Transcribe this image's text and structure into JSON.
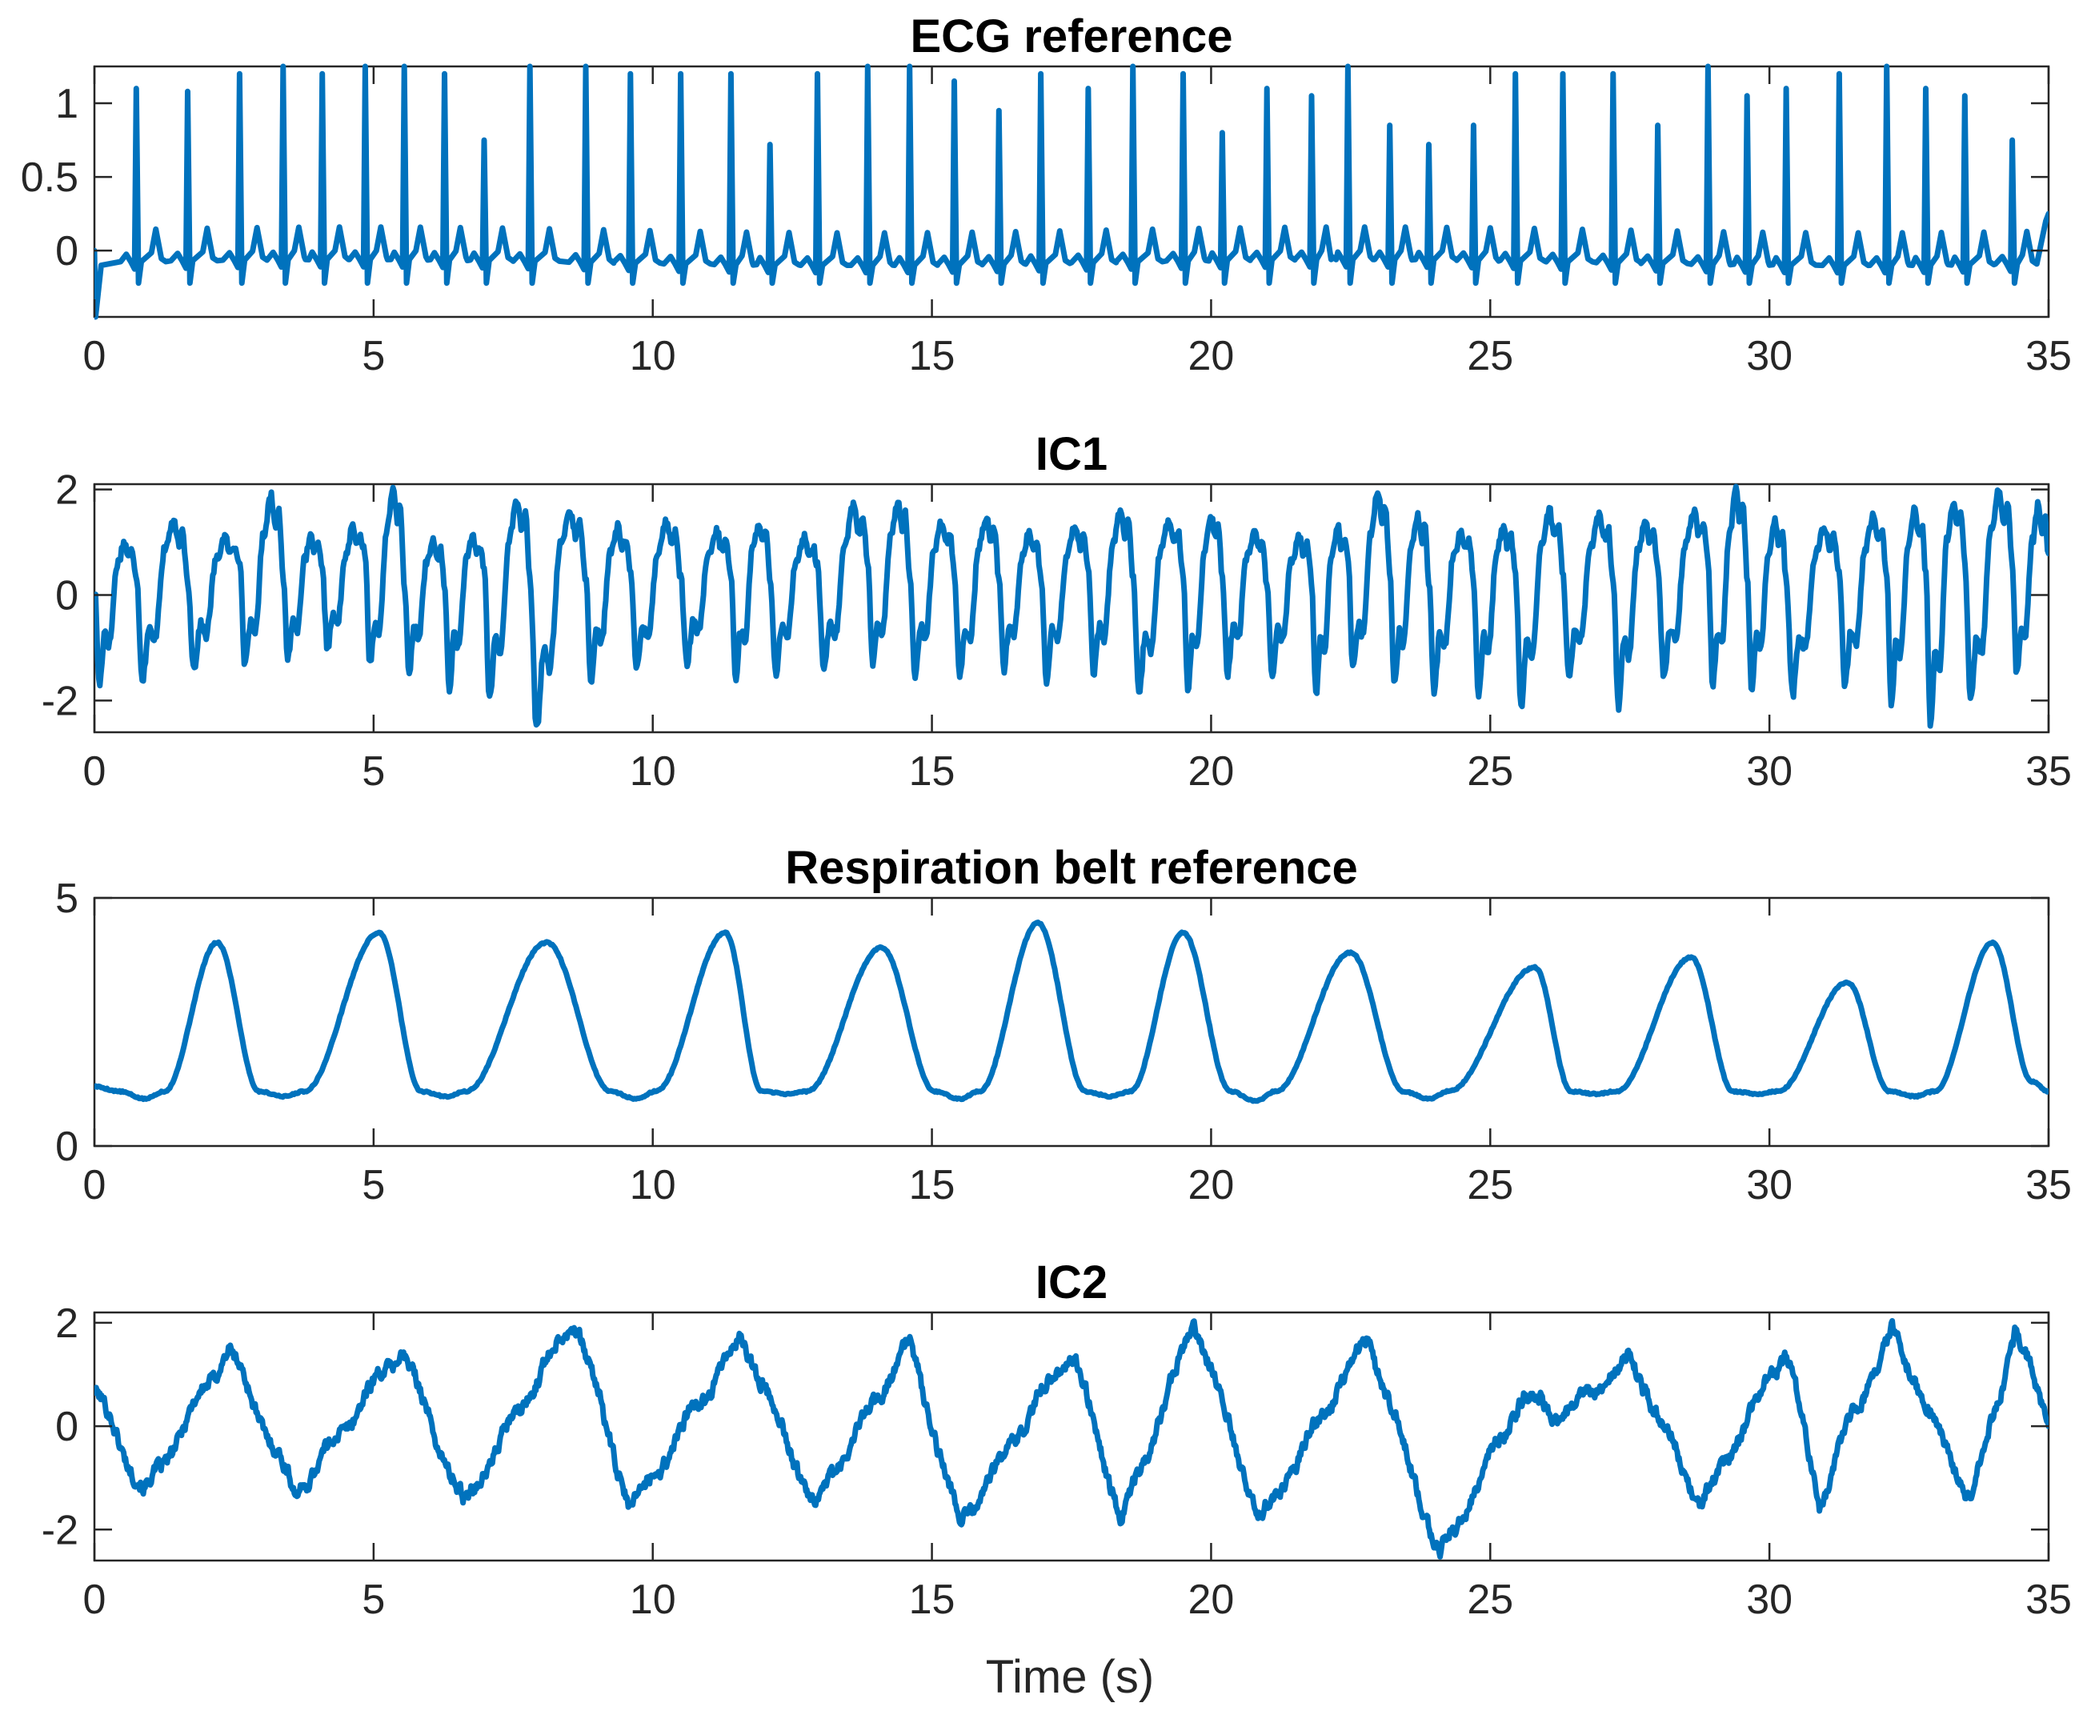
{
  "figure": {
    "xlabel": "Time (s)"
  },
  "style": {
    "line_color": "#0072bd",
    "axis_color": "#262626",
    "background": "#ffffff"
  },
  "chart_data": [
    {
      "type": "line",
      "title": "ECG reference",
      "xlabel": "",
      "ylabel": "",
      "xlim": [
        0,
        35
      ],
      "ylim": [
        -0.45,
        1.25
      ],
      "xticks": [
        0,
        5,
        10,
        15,
        20,
        25,
        30,
        35
      ],
      "xtick_labels": [
        "0",
        "5",
        "10",
        "15",
        "20",
        "25",
        "30",
        "35"
      ],
      "yticks": [
        0,
        0.5,
        1
      ],
      "ytick_labels": [
        "0",
        "0.5",
        "1"
      ],
      "grid": false,
      "signal": {
        "kind": "ecg",
        "baseline": -0.08,
        "r_peaks_t": [
          0.75,
          1.67,
          2.6,
          3.38,
          4.08,
          4.85,
          5.55,
          6.27,
          6.98,
          7.8,
          8.8,
          9.6,
          10.5,
          11.4,
          12.1,
          12.95,
          13.85,
          14.6,
          15.4,
          16.2,
          16.95,
          17.8,
          18.6,
          19.5,
          20.2,
          21.0,
          21.8,
          22.45,
          23.2,
          23.9,
          24.7,
          25.45,
          26.3,
          27.2,
          28.0,
          28.9,
          29.6,
          30.3,
          31.25,
          32.1,
          32.8,
          33.5,
          34.35
        ],
        "r_peaks_amp": [
          1.1,
          1.08,
          1.2,
          1.25,
          1.2,
          1.25,
          1.25,
          1.2,
          0.75,
          1.25,
          1.25,
          1.2,
          1.2,
          1.2,
          0.72,
          1.2,
          1.25,
          1.25,
          1.15,
          0.95,
          1.2,
          1.1,
          1.25,
          1.2,
          0.8,
          1.1,
          1.05,
          1.25,
          0.85,
          0.72,
          0.85,
          1.2,
          1.2,
          1.2,
          0.85,
          1.25,
          1.05,
          1.1,
          1.2,
          1.25,
          1.1,
          1.05,
          0.75
        ],
        "start_value": 0.0,
        "start_dip": -0.45,
        "end_value": 0.25
      }
    },
    {
      "type": "line",
      "title": "IC1",
      "xlabel": "",
      "ylabel": "",
      "xlim": [
        0,
        35
      ],
      "ylim": [
        -2.6,
        2.1
      ],
      "xticks": [
        0,
        5,
        10,
        15,
        20,
        25,
        30,
        35
      ],
      "xtick_labels": [
        "0",
        "5",
        "10",
        "15",
        "20",
        "25",
        "30",
        "35"
      ],
      "yticks": [
        -2,
        0,
        2
      ],
      "ytick_labels": [
        "-2",
        "0",
        "2"
      ],
      "grid": false,
      "signal": {
        "kind": "cardiac-ic",
        "beat_t": [
          0.0,
          0.75,
          1.67,
          2.6,
          3.38,
          4.08,
          4.85,
          5.55,
          6.27,
          6.98,
          7.8,
          8.8,
          9.6,
          10.5,
          11.4,
          12.1,
          12.95,
          13.85,
          14.6,
          15.4,
          16.2,
          16.95,
          17.8,
          18.6,
          19.5,
          20.2,
          21.0,
          21.8,
          22.45,
          23.2,
          23.9,
          24.7,
          25.45,
          26.3,
          27.2,
          28.0,
          28.9,
          29.6,
          30.3,
          31.25,
          32.1,
          32.8,
          33.5,
          34.35,
          35.0
        ],
        "peak_amp": [
          1.0,
          1.4,
          1.1,
          1.9,
          1.1,
          1.3,
          2.0,
          1.0,
          1.1,
          1.8,
          1.6,
          1.3,
          1.4,
          1.2,
          1.4,
          1.1,
          1.7,
          1.8,
          1.4,
          1.5,
          1.2,
          1.3,
          1.6,
          1.4,
          1.5,
          1.2,
          1.1,
          1.3,
          2.0,
          1.5,
          1.2,
          1.3,
          1.6,
          1.5,
          1.4,
          1.6,
          2.0,
          1.4,
          1.3,
          1.5,
          1.6,
          1.8,
          2.0,
          1.7,
          1.2
        ],
        "trough_amp": [
          -1.7,
          -1.6,
          -1.4,
          -1.3,
          -1.2,
          -1.0,
          -1.3,
          -1.5,
          -1.8,
          -2.0,
          -2.55,
          -1.6,
          -1.4,
          -1.3,
          -1.6,
          -1.5,
          -1.4,
          -1.3,
          -1.5,
          -1.6,
          -1.4,
          -1.6,
          -1.5,
          -1.9,
          -1.8,
          -1.5,
          -1.6,
          -1.9,
          -1.4,
          -1.7,
          -1.8,
          -1.9,
          -2.1,
          -1.6,
          -2.1,
          -1.5,
          -1.7,
          -1.8,
          -1.9,
          -1.7,
          -2.1,
          -2.5,
          -2.0,
          -1.5,
          -1.2
        ]
      }
    },
    {
      "type": "line",
      "title": "Respiration belt reference",
      "xlabel": "",
      "ylabel": "",
      "xlim": [
        0,
        35
      ],
      "ylim": [
        0,
        5
      ],
      "xticks": [
        0,
        5,
        10,
        15,
        20,
        25,
        30,
        35
      ],
      "xtick_labels": [
        "0",
        "5",
        "10",
        "15",
        "20",
        "25",
        "30",
        "35"
      ],
      "yticks": [
        0,
        5
      ],
      "ytick_labels": [
        "0",
        "5"
      ],
      "grid": false,
      "signal": {
        "kind": "respiration",
        "baseline": 1.1,
        "peaks_t": [
          2.2,
          5.1,
          8.1,
          11.3,
          14.1,
          16.9,
          19.5,
          22.5,
          25.8,
          28.6,
          31.4,
          34.0
        ],
        "peaks_amp": [
          4.1,
          4.3,
          4.1,
          4.3,
          4.0,
          4.5,
          4.3,
          3.9,
          3.6,
          3.8,
          3.3,
          4.1
        ],
        "troughs_t": [
          0.9,
          3.4,
          6.3,
          9.7,
          12.4,
          15.5,
          18.2,
          20.8,
          23.9,
          26.9,
          29.8,
          32.6
        ],
        "troughs_amp": [
          0.95,
          1.0,
          1.0,
          0.95,
          1.05,
          0.95,
          1.0,
          0.9,
          0.95,
          1.05,
          1.05,
          1.0
        ],
        "start_value": 1.2,
        "end_value": 1.1
      }
    },
    {
      "type": "line",
      "title": "IC2",
      "xlabel": "Time (s)",
      "ylabel": "",
      "xlim": [
        0,
        35
      ],
      "ylim": [
        -2.6,
        2.2
      ],
      "xticks": [
        0,
        5,
        10,
        15,
        20,
        25,
        30,
        35
      ],
      "xtick_labels": [
        "0",
        "5",
        "10",
        "15",
        "20",
        "25",
        "30",
        "35"
      ],
      "yticks": [
        -2,
        0,
        2
      ],
      "ytick_labels": [
        "-2",
        "0",
        "2"
      ],
      "grid": false,
      "signal": {
        "kind": "respiratory-ic",
        "knots": [
          [
            0.0,
            0.7
          ],
          [
            0.9,
            -1.3
          ],
          [
            2.4,
            1.5
          ],
          [
            3.6,
            -1.3
          ],
          [
            5.5,
            1.5
          ],
          [
            6.6,
            -1.5
          ],
          [
            8.6,
            2.1
          ],
          [
            9.6,
            -1.6
          ],
          [
            11.6,
            1.7
          ],
          [
            12.9,
            -1.5
          ],
          [
            14.6,
            1.6
          ],
          [
            15.5,
            -1.9
          ],
          [
            17.5,
            1.5
          ],
          [
            18.4,
            -1.8
          ],
          [
            19.7,
            2.0
          ],
          [
            20.9,
            -1.8
          ],
          [
            22.8,
            1.7
          ],
          [
            24.1,
            -2.5
          ],
          [
            25.6,
            0.6
          ],
          [
            26.3,
            0.2
          ],
          [
            27.5,
            1.3
          ],
          [
            28.8,
            -1.5
          ],
          [
            30.3,
            1.5
          ],
          [
            30.9,
            -1.5
          ],
          [
            31.4,
            0.0
          ],
          [
            32.2,
            1.8
          ],
          [
            33.6,
            -1.4
          ],
          [
            34.4,
            1.8
          ],
          [
            35.0,
            0.2
          ]
        ],
        "noise_amp": 0.22
      }
    }
  ]
}
